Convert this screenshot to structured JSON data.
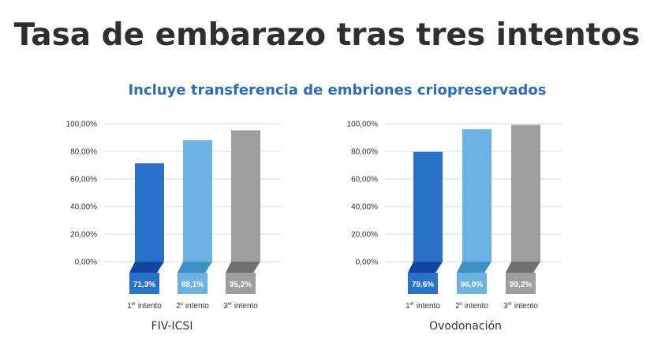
{
  "title": "Tasa de embarazo tras tres intentos",
  "subtitle": "Incluye transferencia de embriones criopreservados",
  "colors": [
    "#2a72c9",
    "#6cb3e4",
    "#9e9e9e"
  ],
  "base_colors": [
    "#0f47a0",
    "#3d8fc4",
    "#707070"
  ],
  "chart_data": [
    {
      "type": "bar",
      "title": "FIV-ICSI",
      "categories": [
        {
          "num": "1",
          "sup": "er",
          "label": "intento"
        },
        {
          "num": "2",
          "sup": "o",
          "label": "intento"
        },
        {
          "num": "3",
          "sup": "er",
          "label": "intento"
        }
      ],
      "values": [
        71.3,
        88.1,
        95.2
      ],
      "value_labels": [
        "71,3%",
        "88,1%",
        "95,2%"
      ],
      "yticks": [
        "0,00%",
        "20,00%",
        "40,00%",
        "60,00%",
        "80,00%",
        "100,00%"
      ],
      "ylim": [
        0,
        100
      ]
    },
    {
      "type": "bar",
      "title": "Ovodonación",
      "categories": [
        {
          "num": "1",
          "sup": "er",
          "label": "intento"
        },
        {
          "num": "2",
          "sup": "o",
          "label": "intento"
        },
        {
          "num": "3",
          "sup": "er",
          "label": "intento"
        }
      ],
      "values": [
        79.6,
        96.0,
        99.2
      ],
      "value_labels": [
        "79,6%",
        "96,0%",
        "99,2%"
      ],
      "yticks": [
        "0,00%",
        "20,00%",
        "40,00%",
        "60,00%",
        "80,00%",
        "100,00%"
      ],
      "ylim": [
        0,
        100
      ]
    }
  ]
}
